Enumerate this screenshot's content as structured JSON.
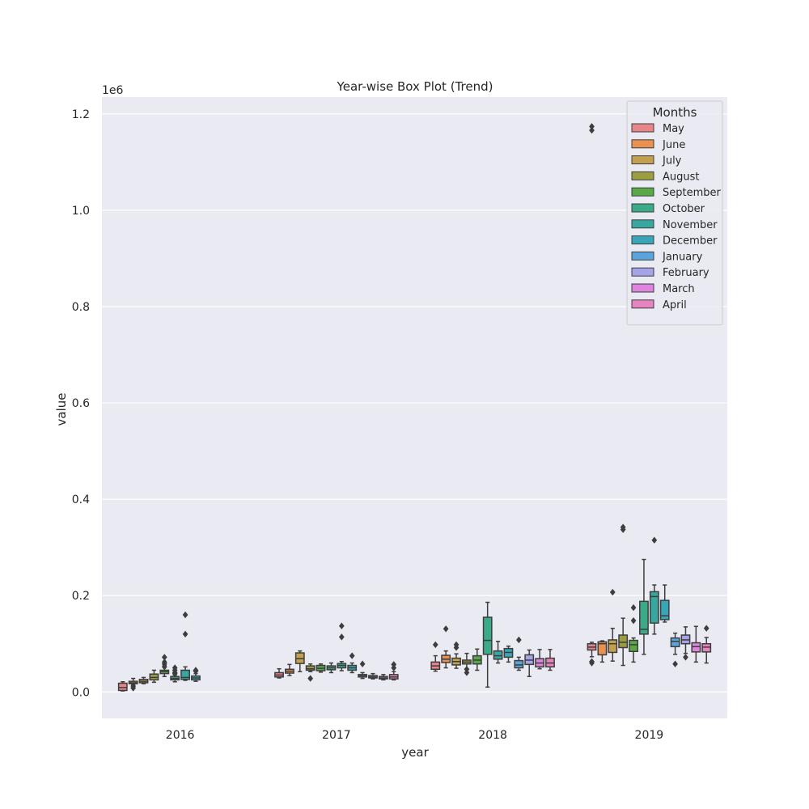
{
  "chart_data": {
    "type": "box",
    "title": "Year-wise Box Plot (Trend)",
    "xlabel": "year",
    "ylabel": "value",
    "scale_label": "1e6",
    "ylim": [
      -0.055,
      1.235
    ],
    "yticks": [
      0.0,
      0.2,
      0.4,
      0.6,
      0.8,
      1.0,
      1.2
    ],
    "ytick_labels": [
      "0.0",
      "0.2",
      "0.4",
      "0.6",
      "0.8",
      "1.0",
      "1.2"
    ],
    "categories": [
      "2016",
      "2017",
      "2018",
      "2019"
    ],
    "legend": {
      "title": "Months",
      "position": "top-right"
    },
    "background": "#eaeaf2",
    "grid": true,
    "series": [
      {
        "name": "May",
        "color": "#e8858b",
        "boxes": [
          {
            "min": 0.002,
            "q1": 0.003,
            "median": 0.009,
            "q3": 0.018,
            "max": 0.021,
            "outliers": []
          },
          {
            "min": 0.029,
            "q1": 0.031,
            "median": 0.035,
            "q3": 0.04,
            "max": 0.048,
            "outliers": []
          },
          {
            "min": 0.043,
            "q1": 0.047,
            "median": 0.054,
            "q3": 0.062,
            "max": 0.075,
            "outliers": [
              0.098
            ]
          },
          {
            "min": 0.073,
            "q1": 0.087,
            "median": 0.093,
            "q3": 0.1,
            "max": 0.103,
            "outliers": [
              0.063,
              0.06,
              1.166,
              1.174
            ]
          }
        ]
      },
      {
        "name": "June",
        "color": "#e89150",
        "boxes": [
          {
            "min": 0.015,
            "q1": 0.017,
            "median": 0.019,
            "q3": 0.022,
            "max": 0.028,
            "outliers": [
              0.008,
              0.012
            ]
          },
          {
            "min": 0.034,
            "q1": 0.039,
            "median": 0.043,
            "q3": 0.047,
            "max": 0.057,
            "outliers": []
          },
          {
            "min": 0.05,
            "q1": 0.061,
            "median": 0.068,
            "q3": 0.076,
            "max": 0.085,
            "outliers": [
              0.131
            ]
          },
          {
            "min": 0.062,
            "q1": 0.077,
            "median": 0.1,
            "q3": 0.104,
            "max": 0.106,
            "outliers": []
          }
        ]
      },
      {
        "name": "July",
        "color": "#c3a04f",
        "boxes": [
          {
            "min": 0.017,
            "q1": 0.019,
            "median": 0.022,
            "q3": 0.026,
            "max": 0.03,
            "outliers": []
          },
          {
            "min": 0.042,
            "q1": 0.059,
            "median": 0.069,
            "q3": 0.081,
            "max": 0.085,
            "outliers": []
          },
          {
            "min": 0.049,
            "q1": 0.056,
            "median": 0.063,
            "q3": 0.07,
            "max": 0.079,
            "outliers": [
              0.092,
              0.098
            ]
          },
          {
            "min": 0.064,
            "q1": 0.082,
            "median": 0.1,
            "q3": 0.108,
            "max": 0.132,
            "outliers": [
              0.207
            ]
          }
        ]
      },
      {
        "name": "August",
        "color": "#9a9e40",
        "boxes": [
          {
            "min": 0.02,
            "q1": 0.025,
            "median": 0.03,
            "q3": 0.037,
            "max": 0.045,
            "outliers": []
          },
          {
            "min": 0.042,
            "q1": 0.045,
            "median": 0.048,
            "q3": 0.054,
            "max": 0.058,
            "outliers": [
              0.028
            ]
          },
          {
            "min": 0.048,
            "q1": 0.058,
            "median": 0.062,
            "q3": 0.066,
            "max": 0.08,
            "outliers": [
              0.04,
              0.047
            ]
          },
          {
            "min": 0.055,
            "q1": 0.092,
            "median": 0.103,
            "q3": 0.118,
            "max": 0.153,
            "outliers": [
              0.342,
              0.337
            ]
          }
        ]
      },
      {
        "name": "September",
        "color": "#58a847",
        "boxes": [
          {
            "min": 0.032,
            "q1": 0.038,
            "median": 0.042,
            "q3": 0.045,
            "max": 0.055,
            "outliers": [
              0.072,
              0.062,
              0.058,
              0.052
            ]
          },
          {
            "min": 0.041,
            "q1": 0.044,
            "median": 0.049,
            "q3": 0.055,
            "max": 0.058,
            "outliers": []
          },
          {
            "min": 0.045,
            "q1": 0.058,
            "median": 0.066,
            "q3": 0.075,
            "max": 0.089,
            "outliers": []
          },
          {
            "min": 0.062,
            "q1": 0.084,
            "median": 0.098,
            "q3": 0.107,
            "max": 0.112,
            "outliers": [
              0.175,
              0.148
            ]
          }
        ]
      },
      {
        "name": "October",
        "color": "#3aaa87",
        "boxes": [
          {
            "min": 0.021,
            "q1": 0.025,
            "median": 0.028,
            "q3": 0.032,
            "max": 0.035,
            "outliers": [
              0.05,
              0.045,
              0.04,
              0.038
            ]
          },
          {
            "min": 0.04,
            "q1": 0.046,
            "median": 0.05,
            "q3": 0.054,
            "max": 0.06,
            "outliers": []
          },
          {
            "min": 0.01,
            "q1": 0.078,
            "median": 0.107,
            "q3": 0.155,
            "max": 0.186,
            "outliers": []
          },
          {
            "min": 0.078,
            "q1": 0.12,
            "median": 0.13,
            "q3": 0.188,
            "max": 0.275,
            "outliers": []
          }
        ]
      },
      {
        "name": "November",
        "color": "#36a89f",
        "boxes": [
          {
            "min": 0.024,
            "q1": 0.026,
            "median": 0.03,
            "q3": 0.045,
            "max": 0.052,
            "outliers": [
              0.12,
              0.16
            ]
          },
          {
            "min": 0.044,
            "q1": 0.05,
            "median": 0.055,
            "q3": 0.059,
            "max": 0.063,
            "outliers": [
              0.114,
              0.137
            ]
          },
          {
            "min": 0.06,
            "q1": 0.068,
            "median": 0.075,
            "q3": 0.085,
            "max": 0.105,
            "outliers": []
          },
          {
            "min": 0.12,
            "q1": 0.143,
            "median": 0.198,
            "q3": 0.208,
            "max": 0.222,
            "outliers": [
              0.315
            ]
          }
        ]
      },
      {
        "name": "December",
        "color": "#39a5b8",
        "boxes": [
          {
            "min": 0.022,
            "q1": 0.025,
            "median": 0.029,
            "q3": 0.033,
            "max": 0.038,
            "outliers": [
              0.043,
              0.045
            ]
          },
          {
            "min": 0.04,
            "q1": 0.045,
            "median": 0.05,
            "q3": 0.055,
            "max": 0.06,
            "outliers": [
              0.075
            ]
          },
          {
            "min": 0.062,
            "q1": 0.072,
            "median": 0.082,
            "q3": 0.09,
            "max": 0.095,
            "outliers": []
          },
          {
            "min": 0.145,
            "q1": 0.15,
            "median": 0.158,
            "q3": 0.19,
            "max": 0.222,
            "outliers": []
          }
        ]
      },
      {
        "name": "January",
        "color": "#5aa4dd",
        "boxes": [
          {
            "min": null,
            "q1": null,
            "median": null,
            "q3": null,
            "max": null,
            "outliers": []
          },
          {
            "min": 0.028,
            "q1": 0.031,
            "median": 0.034,
            "q3": 0.036,
            "max": 0.04,
            "outliers": [
              0.058
            ]
          },
          {
            "min": 0.045,
            "q1": 0.05,
            "median": 0.056,
            "q3": 0.065,
            "max": 0.072,
            "outliers": [
              0.108
            ]
          },
          {
            "min": 0.078,
            "q1": 0.094,
            "median": 0.105,
            "q3": 0.112,
            "max": 0.122,
            "outliers": [
              0.058
            ]
          }
        ]
      },
      {
        "name": "February",
        "color": "#a6a4e8",
        "boxes": [
          {
            "min": null,
            "q1": null,
            "median": null,
            "q3": null,
            "max": null,
            "outliers": []
          },
          {
            "min": 0.027,
            "q1": 0.029,
            "median": 0.031,
            "q3": 0.034,
            "max": 0.038,
            "outliers": []
          },
          {
            "min": 0.032,
            "q1": 0.057,
            "median": 0.066,
            "q3": 0.077,
            "max": 0.087,
            "outliers": []
          },
          {
            "min": 0.08,
            "q1": 0.1,
            "median": 0.108,
            "q3": 0.118,
            "max": 0.135,
            "outliers": [
              0.072
            ]
          }
        ]
      },
      {
        "name": "March",
        "color": "#de85e0",
        "boxes": [
          {
            "min": null,
            "q1": null,
            "median": null,
            "q3": null,
            "max": null,
            "outliers": []
          },
          {
            "min": 0.025,
            "q1": 0.027,
            "median": 0.029,
            "q3": 0.032,
            "max": 0.036,
            "outliers": []
          },
          {
            "min": 0.048,
            "q1": 0.052,
            "median": 0.06,
            "q3": 0.069,
            "max": 0.088,
            "outliers": []
          },
          {
            "min": 0.062,
            "q1": 0.083,
            "median": 0.094,
            "q3": 0.102,
            "max": 0.136,
            "outliers": []
          }
        ]
      },
      {
        "name": "April",
        "color": "#e883c1",
        "boxes": [
          {
            "min": null,
            "q1": null,
            "median": null,
            "q3": null,
            "max": null,
            "outliers": []
          },
          {
            "min": 0.025,
            "q1": 0.027,
            "median": 0.031,
            "q3": 0.036,
            "max": 0.042,
            "outliers": [
              0.05,
              0.057
            ]
          },
          {
            "min": 0.045,
            "q1": 0.052,
            "median": 0.06,
            "q3": 0.07,
            "max": 0.088,
            "outliers": []
          },
          {
            "min": 0.06,
            "q1": 0.083,
            "median": 0.093,
            "q3": 0.1,
            "max": 0.113,
            "outliers": [
              0.132
            ]
          }
        ]
      }
    ]
  }
}
